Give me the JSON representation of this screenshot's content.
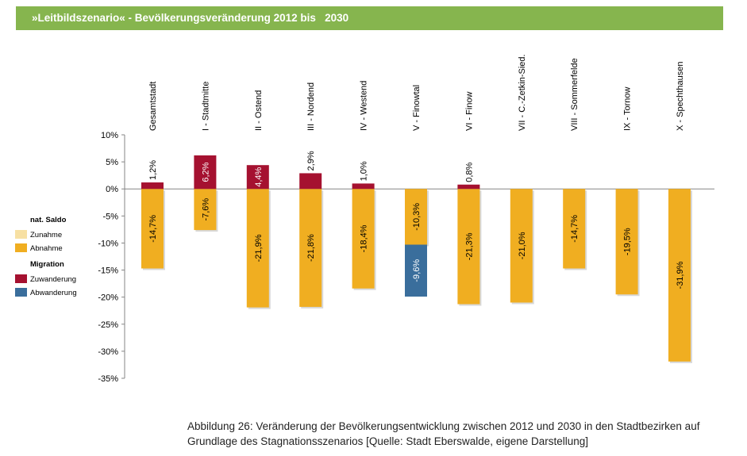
{
  "title": "»Leitbildszenario« - Bevölkerungsveränderung 2012 bis   2030",
  "caption": {
    "line1": "Abbildung 26: Veränderung der Bevölkerungsentwicklung  zwischen 2012 und 2030 in den Stadtbezirken auf",
    "line2": "Grundlage des Stagnationsszenarios [Quelle: Stadt Eberswalde, eigene Darstellung]"
  },
  "colors": {
    "zunahme": "#f7e0a3",
    "abnahme": "#f0ae21",
    "zuwanderung": "#a51130",
    "abwanderung": "#3a6e9c",
    "title_bar": "#86b54e"
  },
  "legend": {
    "groups": [
      {
        "title": "nat. Saldo",
        "items": [
          {
            "label": "Zunahme",
            "color": "#f7e0a3"
          },
          {
            "label": "Abnahme",
            "color": "#f0ae21"
          }
        ]
      },
      {
        "title": "Migration",
        "items": [
          {
            "label": "Zuwanderung",
            "color": "#a51130"
          },
          {
            "label": "Abwanderung",
            "color": "#3a6e9c"
          }
        ]
      }
    ]
  },
  "chart_data": {
    "type": "bar",
    "categories": [
      "Gesamtstadt",
      "I - Stadtmitte",
      "II - Ostend",
      "III - Nordend",
      "IV - Westend",
      "V - Finowtal",
      "VI - Finow",
      "VII - C.-Zetkin-Sied.",
      "VIII - Sommerfelde",
      "IX - Tornow",
      "X - Spechthausen"
    ],
    "series": [
      {
        "name": "Abnahme",
        "values": [
          -14.7,
          -7.6,
          -21.9,
          -21.8,
          -18.4,
          -10.3,
          -21.3,
          -21.0,
          -14.7,
          -19.5,
          -31.9
        ],
        "labels": [
          "-14,7%",
          "-7,6%",
          "-21,9%",
          "-21,8%",
          "-18,4%",
          "-10,3%",
          "-21,3%",
          "-21,0%",
          "-14,7%",
          "-19,5%",
          "-31,9%"
        ]
      },
      {
        "name": "Zuwanderung",
        "values": [
          1.2,
          6.2,
          4.4,
          2.9,
          1.0,
          null,
          0.8,
          null,
          null,
          null,
          null
        ],
        "labels": [
          "1,2%",
          "6,2%",
          "4,4%",
          "2,9%",
          "1,0%",
          "",
          "0,8%",
          "",
          "",
          "",
          ""
        ]
      },
      {
        "name": "Abwanderung",
        "values": [
          null,
          null,
          null,
          null,
          null,
          -9.6,
          null,
          null,
          null,
          null,
          null
        ],
        "labels": [
          "",
          "",
          "",
          "",
          "",
          "-9,6%",
          "",
          "",
          "",
          "",
          ""
        ]
      }
    ],
    "ylim": [
      -35,
      10
    ],
    "yticks": [
      10,
      5,
      0,
      -5,
      -10,
      -15,
      -20,
      -25,
      -30,
      -35
    ],
    "ytick_labels": [
      "10%",
      "5%",
      "0%",
      "-5%",
      "-10%",
      "-15%",
      "-20%",
      "-25%",
      "-30%",
      "-35%"
    ],
    "grid": false,
    "legend_position": "left"
  }
}
